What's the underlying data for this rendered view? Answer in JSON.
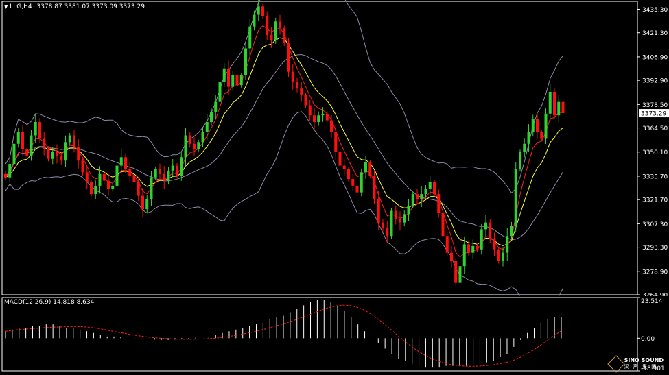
{
  "symbol_info": {
    "symbol": "LLG,H4",
    "ohlc": "3378.87 3381.07 3373.09 3373.29"
  },
  "price_axis": {
    "labels": [
      "3435.30",
      "3421.30",
      "3406.90",
      "3392.90",
      "3378.50",
      "3364.50",
      "3350.10",
      "3335.70",
      "3321.70",
      "3307.30",
      "3293.30",
      "3278.90",
      "3264.90"
    ],
    "current_price": "3373.29"
  },
  "macd": {
    "title": "MACD(12,26,9) 14.818 8.634",
    "axis_labels": [
      "23.514",
      "0.00",
      "-18.901"
    ],
    "range": [
      -18.901,
      23.514
    ]
  },
  "logo": {
    "text": "SINO SOUND",
    "sub": "汉 声 集 团"
  },
  "colors": {
    "background": "#000000",
    "bull": "#2fd32f",
    "bear": "#ff1010",
    "bands": "#8c8ca8",
    "fast_ma": "#ff2020",
    "slow_ma": "#ffff33",
    "macd_hist": "#ffffff",
    "macd_signal": "#ff2020"
  },
  "chart_data": [
    {
      "type": "candlestick",
      "ylim": [
        3264.9,
        3440.0
      ],
      "closes": [
        3335,
        3343,
        3355,
        3362,
        3352,
        3348,
        3360,
        3368,
        3358,
        3352,
        3346,
        3350,
        3348,
        3345,
        3356,
        3360,
        3353,
        3345,
        3338,
        3332,
        3325,
        3330,
        3337,
        3333,
        3328,
        3330,
        3342,
        3347,
        3340,
        3336,
        3332,
        3324,
        3316,
        3322,
        3335,
        3340,
        3337,
        3333,
        3339,
        3342,
        3336,
        3347,
        3360,
        3355,
        3352,
        3356,
        3362,
        3368,
        3374,
        3380,
        3392,
        3400,
        3389,
        3396,
        3390,
        3396,
        3412,
        3425,
        3432,
        3437,
        3431,
        3420,
        3417,
        3428,
        3424,
        3415,
        3398,
        3392,
        3388,
        3384,
        3378,
        3372,
        3368,
        3372,
        3373,
        3369,
        3362,
        3350,
        3342,
        3340,
        3334,
        3330,
        3326,
        3338,
        3344,
        3336,
        3322,
        3308,
        3305,
        3300,
        3315,
        3310,
        3308,
        3313,
        3318,
        3325,
        3322,
        3325,
        3328,
        3332,
        3325,
        3314,
        3300,
        3290,
        3285,
        3272,
        3282,
        3295,
        3290,
        3294,
        3292,
        3304,
        3308,
        3298,
        3292,
        3285,
        3290,
        3300,
        3306,
        3340,
        3350,
        3355,
        3362,
        3370,
        3362,
        3358,
        3373,
        3386,
        3372,
        3380,
        3373.29
      ]
    },
    {
      "type": "histogram",
      "ylim": [
        -18.901,
        23.514
      ],
      "values": [
        4,
        5,
        6,
        6,
        7,
        7,
        8,
        8,
        7,
        6,
        6,
        5,
        4,
        3,
        2,
        1,
        1,
        0.5,
        0,
        -0.3,
        -0.5,
        -0.5,
        -0.8,
        -1,
        -1,
        -0.8,
        -0.5,
        -0.2,
        0.2,
        0.5,
        1,
        2,
        3,
        4,
        5,
        6,
        7,
        8,
        9,
        11,
        12,
        13,
        15,
        17,
        19,
        21,
        22,
        22,
        21,
        19,
        16,
        12,
        8,
        4,
        0,
        -3,
        -6,
        -9,
        -12,
        -13,
        -15,
        -16,
        -17,
        -17,
        -17,
        -16,
        -16,
        -16,
        -16,
        -15,
        -15,
        -14,
        -13,
        -11,
        -9,
        -5,
        -1,
        3,
        6,
        9,
        11,
        12,
        12
      ]
    }
  ]
}
